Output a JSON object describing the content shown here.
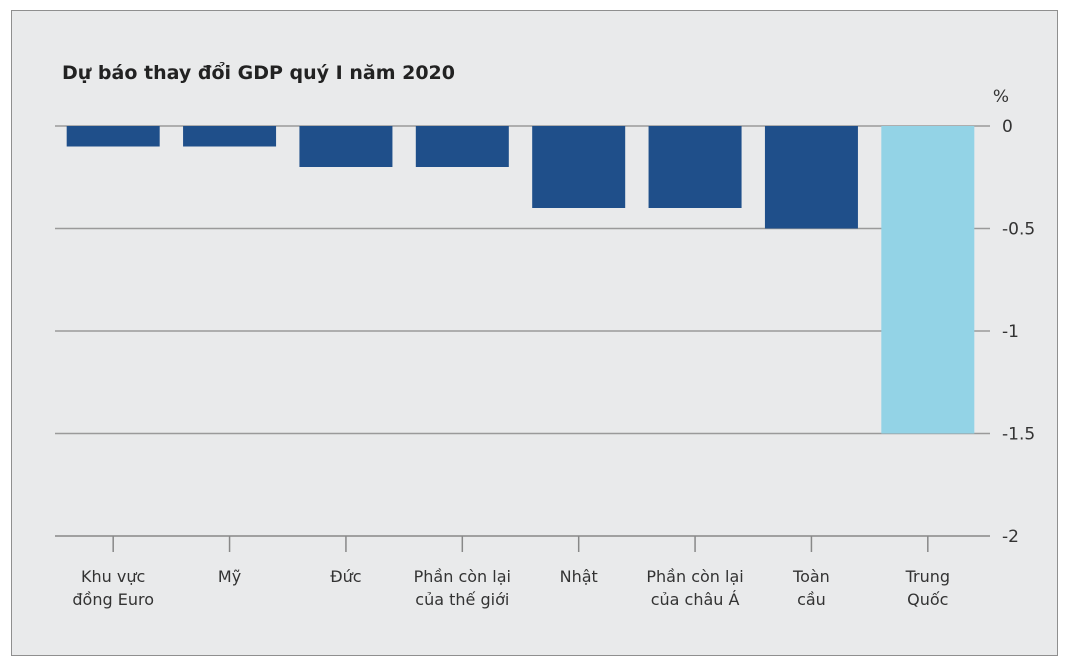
{
  "chart_data": {
    "type": "bar",
    "title": "Dự báo thay đổi GDP quý I năm 2020",
    "unit_label": "%",
    "categories": [
      [
        "Khu vực",
        "đồng Euro"
      ],
      [
        "Mỹ"
      ],
      [
        "Đức"
      ],
      [
        "Phần còn lại",
        "của thế giới"
      ],
      [
        "Nhật"
      ],
      [
        "Phần còn lại",
        "của châu Á"
      ],
      [
        "Toàn",
        "cầu"
      ],
      [
        "Trung",
        "Quốc"
      ]
    ],
    "values": [
      -0.1,
      -0.1,
      -0.2,
      -0.2,
      -0.4,
      -0.4,
      -0.5,
      -1.5
    ],
    "bar_colors": [
      "#1f4f8a",
      "#1f4f8a",
      "#1f4f8a",
      "#1f4f8a",
      "#1f4f8a",
      "#1f4f8a",
      "#1f4f8a",
      "#93d3e6"
    ],
    "yticks": [
      0,
      -0.5,
      -1,
      -1.5,
      -2
    ],
    "ytick_labels": [
      "0",
      "-0.5",
      "-1",
      "-1.5",
      "-2"
    ],
    "ylim": [
      -2,
      0
    ],
    "grid": true,
    "gridline_color": "#9a9a9a"
  }
}
